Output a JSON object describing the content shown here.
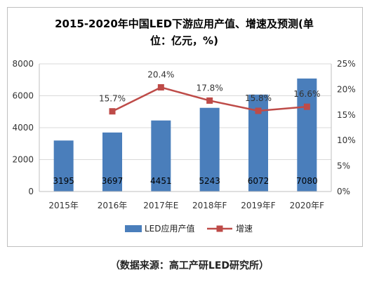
{
  "chart_data": {
    "type": "bar",
    "title_line1": "2015-2020年中国LED下游应用产值、增速及预测(单",
    "title_line2": "位：亿元，%)",
    "categories": [
      "2015年",
      "2016年",
      "2017年E",
      "2018年F",
      "2019年F",
      "2020年F"
    ],
    "series": [
      {
        "name": "LED应用产值",
        "type": "bar",
        "axis": "left",
        "color": "#4a7ebb",
        "values": [
          3195,
          3697,
          4451,
          5243,
          6072,
          7080
        ],
        "labels": [
          "3195",
          "3697",
          "4451",
          "5243",
          "6072",
          "7080"
        ]
      },
      {
        "name": "增速",
        "type": "line",
        "axis": "right",
        "color": "#be4b48",
        "values": [
          null,
          15.7,
          20.4,
          17.8,
          15.8,
          16.6
        ],
        "labels": [
          "",
          "15.7%",
          "20.4%",
          "17.8%",
          "15.8%",
          "16.6%"
        ]
      }
    ],
    "ylim_left": [
      0,
      8000
    ],
    "yticks_left": [
      "0",
      "2000",
      "4000",
      "6000",
      "8000"
    ],
    "ylim_right": [
      0,
      25
    ],
    "yticks_right": [
      "0%",
      "5%",
      "10%",
      "15%",
      "20%",
      "25%"
    ],
    "grid": true,
    "legend_position": "bottom"
  },
  "source": "（数据来源：高工产研LED研究所）"
}
